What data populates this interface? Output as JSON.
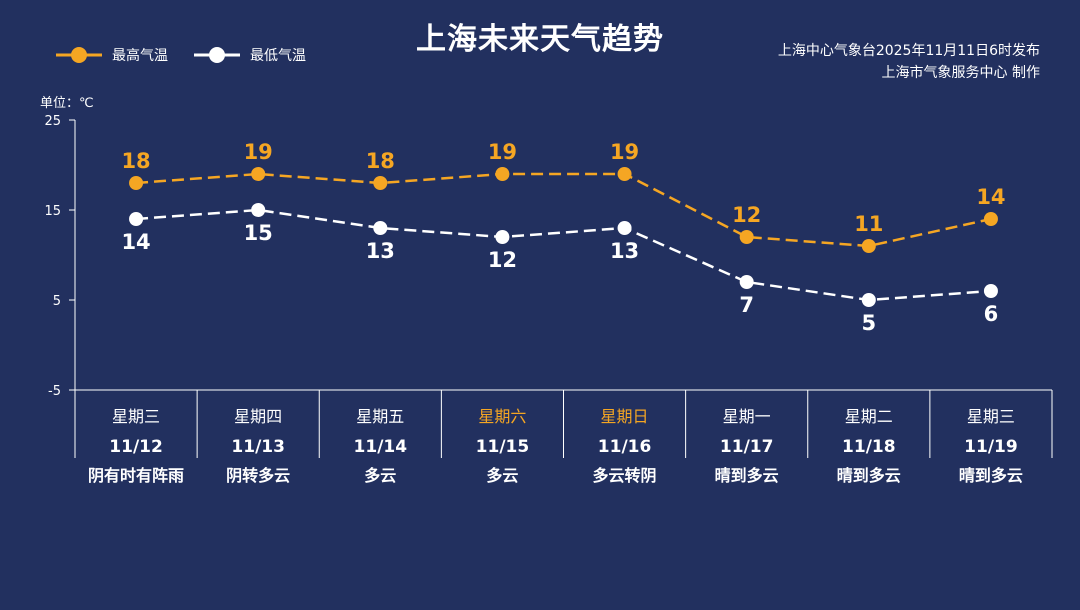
{
  "title": "上海未来天气趋势",
  "legend": {
    "high": "最高气温",
    "low": "最低气温"
  },
  "source": {
    "line1": "上海中心气象台2025年11月11日6时发布",
    "line2": "上海市气象服务中心 制作"
  },
  "unit_label": "单位：℃",
  "colors": {
    "background": "#22305f",
    "high": "#f5a623",
    "low": "#ffffff",
    "weekend": "#f5a623"
  },
  "chart_data": {
    "type": "line",
    "ylim": [
      -5,
      25
    ],
    "yticks": [
      25,
      15,
      5,
      -5
    ],
    "categories": [
      "11/12",
      "11/13",
      "11/14",
      "11/15",
      "11/16",
      "11/17",
      "11/18",
      "11/19"
    ],
    "weekdays": [
      "星期三",
      "星期四",
      "星期五",
      "星期六",
      "星期日",
      "星期一",
      "星期二",
      "星期三"
    ],
    "weekend": [
      false,
      false,
      false,
      true,
      true,
      false,
      false,
      false
    ],
    "weather": [
      "阴有时有阵雨",
      "阴转多云",
      "多云",
      "多云",
      "多云转阴",
      "晴到多云",
      "晴到多云",
      "晴到多云"
    ],
    "series": [
      {
        "name": "最高气温",
        "key": "high",
        "values": [
          18,
          19,
          18,
          19,
          19,
          12,
          11,
          14
        ]
      },
      {
        "name": "最低气温",
        "key": "low",
        "values": [
          14,
          15,
          13,
          12,
          13,
          7,
          5,
          6
        ]
      }
    ],
    "legend_position": "top-left"
  }
}
